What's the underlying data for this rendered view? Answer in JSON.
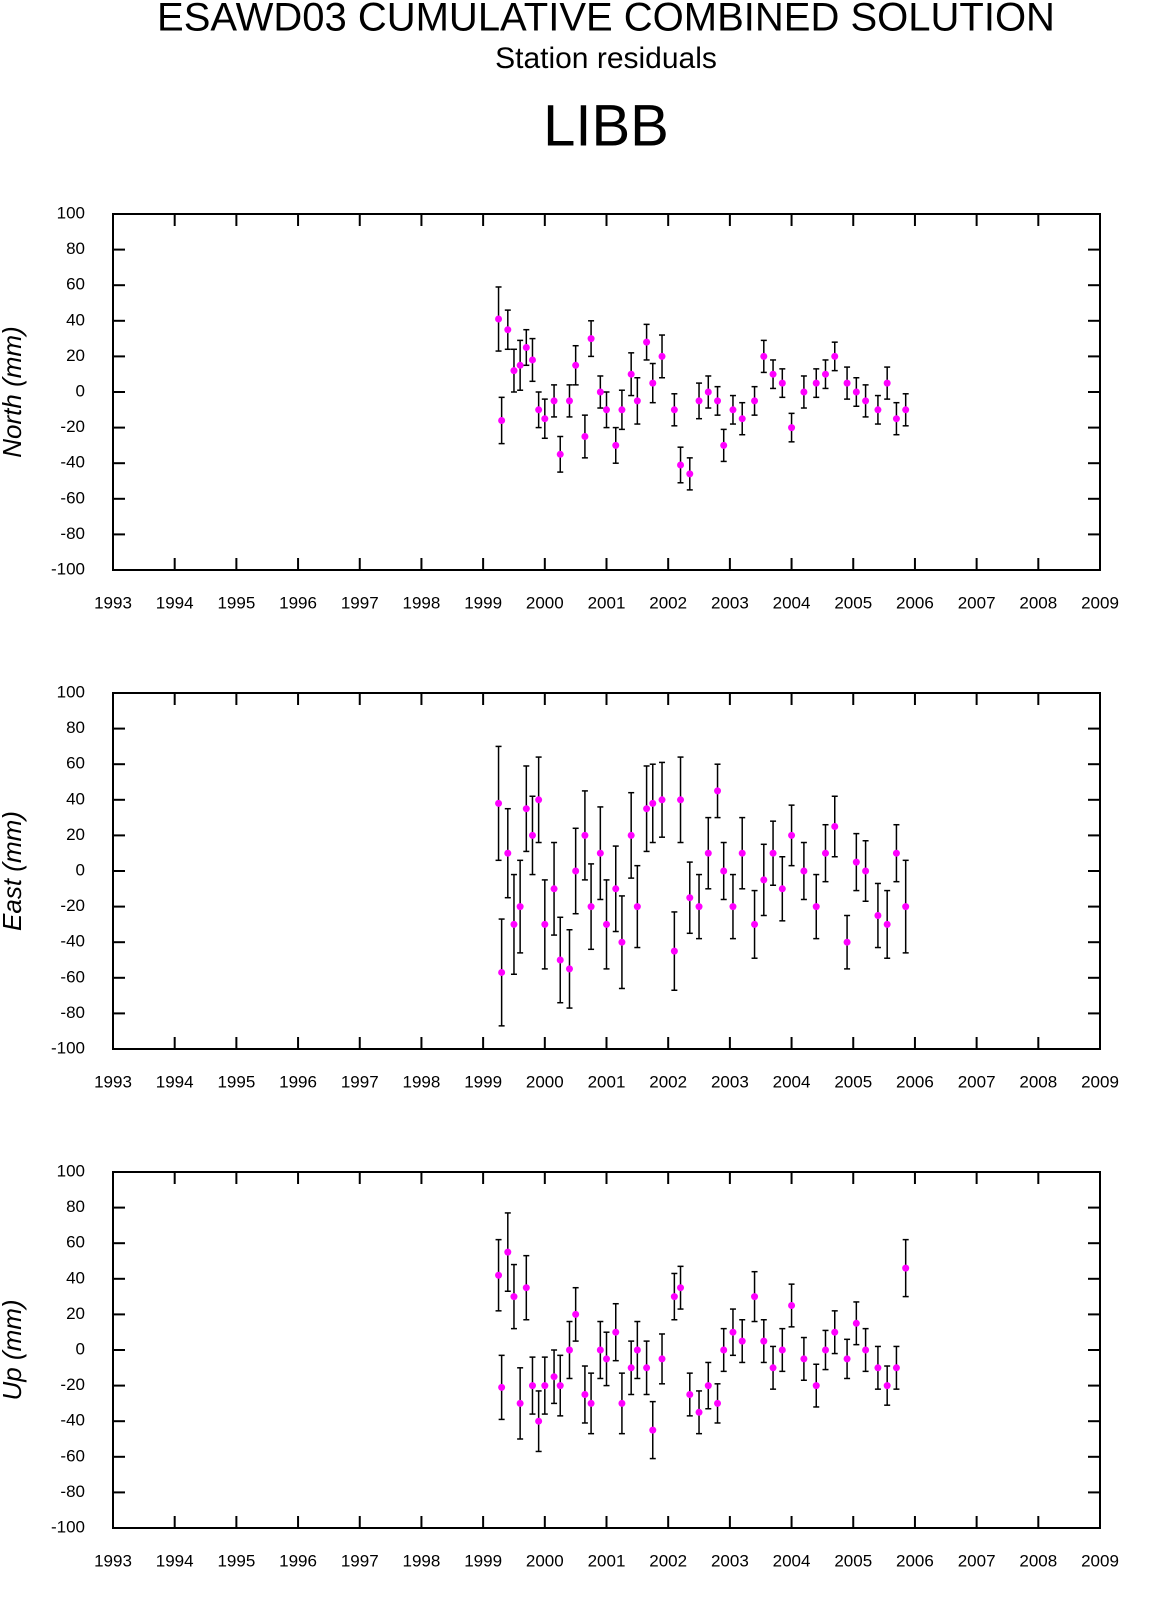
{
  "header": {
    "title": "ESAWD03 CUMULATIVE COMBINED SOLUTION",
    "subtitle": "Station residuals",
    "station": "LIBB"
  },
  "chart_data": [
    {
      "type": "scatter",
      "y_label": "North (mm)",
      "color": "#ff00ff",
      "x": [
        1999.25,
        1999.3,
        1999.4,
        1999.5,
        1999.6,
        1999.7,
        1999.8,
        1999.9,
        2000.0,
        2000.15,
        2000.25,
        2000.4,
        2000.5,
        2000.65,
        2000.75,
        2000.9,
        2001.0,
        2001.15,
        2001.25,
        2001.4,
        2001.5,
        2001.65,
        2001.75,
        2001.9,
        2002.1,
        2002.2,
        2002.35,
        2002.5,
        2002.65,
        2002.8,
        2002.9,
        2003.05,
        2003.2,
        2003.4,
        2003.55,
        2003.7,
        2003.85,
        2004.0,
        2004.2,
        2004.4,
        2004.55,
        2004.7,
        2004.9,
        2005.05,
        2005.2,
        2005.4,
        2005.55,
        2005.7,
        2005.85
      ],
      "values": [
        41,
        -16,
        35,
        12,
        15,
        25,
        18,
        -10,
        -15,
        -5,
        -35,
        -5,
        15,
        -25,
        30,
        0,
        -10,
        -30,
        -10,
        10,
        -5,
        28,
        5,
        20,
        -10,
        -41,
        -46,
        -5,
        0,
        -5,
        -30,
        -10,
        -15,
        -5,
        20,
        10,
        5,
        -20,
        0,
        5,
        10,
        20,
        5,
        0,
        -5,
        -10,
        5,
        -15,
        -10
      ],
      "errors": [
        18,
        13,
        11,
        12,
        14,
        10,
        12,
        10,
        11,
        9,
        10,
        9,
        11,
        12,
        10,
        9,
        10,
        10,
        11,
        12,
        13,
        10,
        11,
        12,
        9,
        10,
        9,
        10,
        9,
        8,
        9,
        8,
        9,
        8,
        9,
        8,
        8,
        8,
        9,
        8,
        8,
        8,
        9,
        8,
        9,
        8,
        9,
        9,
        9
      ],
      "xlim": [
        1993,
        2009
      ],
      "xticks": [
        1993,
        1994,
        1995,
        1996,
        1997,
        1998,
        1999,
        2000,
        2001,
        2002,
        2003,
        2004,
        2005,
        2006,
        2007,
        2008,
        2009
      ],
      "ylim": [
        -100,
        100
      ],
      "yticks": [
        -100,
        -80,
        -60,
        -40,
        -20,
        0,
        20,
        40,
        60,
        80,
        100
      ]
    },
    {
      "type": "scatter",
      "y_label": "East (mm)",
      "color": "#ff00ff",
      "x": [
        1999.25,
        1999.3,
        1999.4,
        1999.5,
        1999.6,
        1999.7,
        1999.8,
        1999.9,
        2000.0,
        2000.15,
        2000.25,
        2000.4,
        2000.5,
        2000.65,
        2000.75,
        2000.9,
        2001.0,
        2001.15,
        2001.25,
        2001.4,
        2001.5,
        2001.65,
        2001.75,
        2001.9,
        2002.1,
        2002.2,
        2002.35,
        2002.5,
        2002.65,
        2002.8,
        2002.9,
        2003.05,
        2003.2,
        2003.4,
        2003.55,
        2003.7,
        2003.85,
        2004.0,
        2004.2,
        2004.4,
        2004.55,
        2004.7,
        2004.9,
        2005.05,
        2005.2,
        2005.4,
        2005.55,
        2005.7,
        2005.85
      ],
      "values": [
        38,
        -57,
        10,
        -30,
        -20,
        35,
        20,
        40,
        -30,
        -10,
        -50,
        -55,
        0,
        20,
        -20,
        10,
        -30,
        -10,
        -40,
        20,
        -20,
        35,
        38,
        40,
        -45,
        40,
        -15,
        -20,
        10,
        45,
        0,
        -20,
        10,
        -30,
        -5,
        10,
        -10,
        20,
        0,
        -20,
        10,
        25,
        -40,
        5,
        0,
        -25,
        -30,
        10,
        -20
      ],
      "errors": [
        32,
        30,
        25,
        28,
        26,
        24,
        22,
        24,
        25,
        26,
        24,
        22,
        24,
        25,
        24,
        26,
        25,
        24,
        26,
        24,
        23,
        24,
        22,
        21,
        22,
        24,
        20,
        18,
        20,
        15,
        16,
        18,
        20,
        19,
        20,
        18,
        18,
        17,
        16,
        18,
        16,
        17,
        15,
        16,
        17,
        18,
        19,
        16,
        26
      ],
      "xlim": [
        1993,
        2009
      ],
      "xticks": [
        1993,
        1994,
        1995,
        1996,
        1997,
        1998,
        1999,
        2000,
        2001,
        2002,
        2003,
        2004,
        2005,
        2006,
        2007,
        2008,
        2009
      ],
      "ylim": [
        -100,
        100
      ],
      "yticks": [
        -100,
        -80,
        -60,
        -40,
        -20,
        0,
        20,
        40,
        60,
        80,
        100
      ]
    },
    {
      "type": "scatter",
      "y_label": "Up (mm)",
      "color": "#ff00ff",
      "x": [
        1999.25,
        1999.3,
        1999.4,
        1999.5,
        1999.6,
        1999.7,
        1999.8,
        1999.9,
        2000.0,
        2000.15,
        2000.25,
        2000.4,
        2000.5,
        2000.65,
        2000.75,
        2000.9,
        2001.0,
        2001.15,
        2001.25,
        2001.4,
        2001.5,
        2001.65,
        2001.75,
        2001.9,
        2002.1,
        2002.2,
        2002.35,
        2002.5,
        2002.65,
        2002.8,
        2002.9,
        2003.05,
        2003.2,
        2003.4,
        2003.55,
        2003.7,
        2003.85,
        2004.0,
        2004.2,
        2004.4,
        2004.55,
        2004.7,
        2004.9,
        2005.05,
        2005.2,
        2005.4,
        2005.55,
        2005.7,
        2005.85
      ],
      "values": [
        42,
        -21,
        55,
        30,
        -30,
        35,
        -20,
        -40,
        -20,
        -15,
        -20,
        0,
        20,
        -25,
        -30,
        0,
        -5,
        10,
        -30,
        -10,
        0,
        -10,
        -45,
        -5,
        30,
        35,
        -25,
        -35,
        -20,
        -30,
        0,
        10,
        5,
        30,
        5,
        -10,
        0,
        25,
        -5,
        -20,
        0,
        10,
        -5,
        15,
        0,
        -10,
        -20,
        -10,
        46
      ],
      "errors": [
        20,
        18,
        22,
        18,
        20,
        18,
        16,
        17,
        16,
        15,
        17,
        16,
        15,
        16,
        17,
        16,
        15,
        16,
        17,
        15,
        16,
        15,
        16,
        14,
        13,
        12,
        12,
        12,
        13,
        11,
        12,
        13,
        12,
        14,
        12,
        12,
        12,
        12,
        12,
        12,
        11,
        12,
        11,
        12,
        12,
        12,
        11,
        12,
        16
      ],
      "xlim": [
        1993,
        2009
      ],
      "xticks": [
        1993,
        1994,
        1995,
        1996,
        1997,
        1998,
        1999,
        2000,
        2001,
        2002,
        2003,
        2004,
        2005,
        2006,
        2007,
        2008,
        2009
      ],
      "ylim": [
        -100,
        100
      ],
      "yticks": [
        -100,
        -80,
        -60,
        -40,
        -20,
        0,
        20,
        40,
        60,
        80,
        100
      ]
    }
  ]
}
